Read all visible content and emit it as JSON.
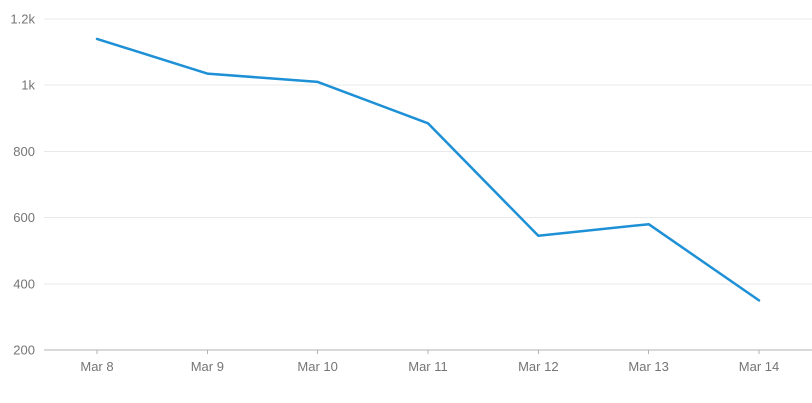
{
  "colors": {
    "line": "#1e90d6",
    "grid": "#e9e9e9",
    "axis": "#b3b3b8",
    "label": "#757575",
    "background": "#ffffff"
  },
  "chart_data": {
    "type": "line",
    "categories": [
      "Mar 8",
      "Mar 9",
      "Mar 10",
      "Mar 11",
      "Mar 12",
      "Mar 13",
      "Mar 14"
    ],
    "values": [
      1140,
      1035,
      1010,
      885,
      545,
      580,
      350
    ],
    "yticks": [
      {
        "value": 1200,
        "label": "1.2k"
      },
      {
        "value": 1000,
        "label": "1k"
      },
      {
        "value": 800,
        "label": "800"
      },
      {
        "value": 600,
        "label": "600"
      },
      {
        "value": 400,
        "label": "400"
      },
      {
        "value": 200,
        "label": "200"
      }
    ],
    "ylim": [
      200,
      1200
    ],
    "grid": "horizontal",
    "legend": "none"
  }
}
